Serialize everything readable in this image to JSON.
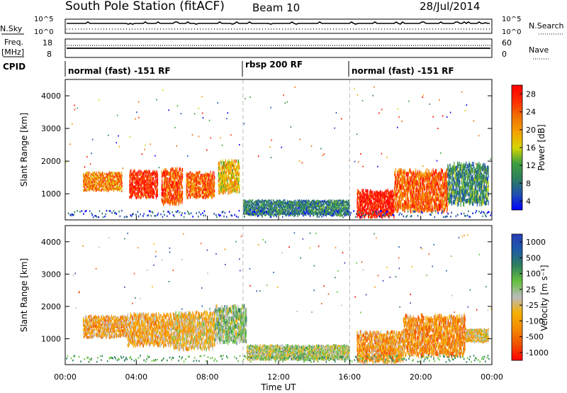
{
  "header": {
    "title": "South Pole Station (fitACF)",
    "beam": "Beam 10",
    "date": "28/Jul/2014"
  },
  "indicators": {
    "nsky_label": "N.Sky",
    "nsearch_label": "N.Search",
    "freq_label_1": "Freq.",
    "freq_label_2": "[MHz]",
    "nave_label": "Nave",
    "cpid_label": "CPID",
    "nsky_ticks": [
      "10^5",
      "10^0"
    ],
    "nsearch_ticks": [
      "10^5",
      "10^0"
    ],
    "freq_ticks": [
      "18",
      "8"
    ],
    "nave_ticks": [
      "60",
      "0"
    ]
  },
  "cpid_segments": [
    {
      "label": "normal (fast) -151 RF",
      "start_h": 0,
      "end_h": 10
    },
    {
      "label": "rbsp 200 RF",
      "start_h": 10,
      "end_h": 16
    },
    {
      "label": "normal (fast) -151 RF",
      "start_h": 16,
      "end_h": 24
    }
  ],
  "colors": {
    "power_scale": [
      "#0000ff",
      "#1f4fb0",
      "#2e7f5e",
      "#3f9f3f",
      "#d6d600",
      "#f5a000",
      "#f07000",
      "#ff2a00",
      "#ff0000"
    ],
    "velocity_scale": [
      "#2a3fb8",
      "#1d5aa6",
      "#2e7f5e",
      "#66c040",
      "#bbbbbb",
      "#f5b000",
      "#f58a00",
      "#f05000",
      "#ff0000"
    ]
  },
  "chart_data": [
    {
      "type": "heatmap",
      "name": "power",
      "ylabel": "Slant Range [km]",
      "colorbar_label": "Power [dB]",
      "colorbar_ticks": [
        "28",
        "24",
        "20",
        "16",
        "12",
        "8",
        "4"
      ],
      "yticks": [
        "4000",
        "3000",
        "2000",
        "1000"
      ],
      "ylim": [
        200,
        4500
      ],
      "xlim": [
        0,
        24
      ],
      "zlim": [
        0,
        32
      ],
      "regions": [
        {
          "t0": 1.0,
          "t1": 3.2,
          "r0": 1100,
          "r1": 1650,
          "z": 22
        },
        {
          "t0": 3.6,
          "t1": 5.2,
          "r0": 900,
          "r1": 1700,
          "z": 27
        },
        {
          "t0": 5.4,
          "t1": 6.6,
          "r0": 700,
          "r1": 1750,
          "z": 25
        },
        {
          "t0": 6.8,
          "t1": 8.4,
          "r0": 900,
          "r1": 1650,
          "z": 24
        },
        {
          "t0": 8.6,
          "t1": 9.8,
          "r0": 1050,
          "r1": 2000,
          "z": 18
        },
        {
          "t0": 10.0,
          "t1": 16.0,
          "r0": 350,
          "r1": 800,
          "z": 9
        },
        {
          "t0": 16.4,
          "t1": 18.5,
          "r0": 300,
          "r1": 1100,
          "z": 29
        },
        {
          "t0": 18.5,
          "t1": 21.5,
          "r0": 500,
          "r1": 1700,
          "z": 24
        },
        {
          "t0": 21.5,
          "t1": 23.8,
          "r0": 700,
          "r1": 1900,
          "z": 10
        }
      ]
    },
    {
      "type": "heatmap",
      "name": "velocity",
      "xlabel": "Time UT",
      "ylabel": "Slant Range [km]",
      "colorbar_label": "Velocity [m s⁻¹]",
      "colorbar_ticks": [
        "1000",
        "500",
        "100",
        "25",
        "-25",
        "-100",
        "-500",
        "-1000"
      ],
      "yticks": [
        "4000",
        "3000",
        "2000",
        "1000"
      ],
      "xticks": [
        "00:00",
        "04:00",
        "08:00",
        "12:00",
        "16:00",
        "20:00",
        "00:00"
      ],
      "ylim": [
        200,
        4500
      ],
      "xlim": [
        0,
        24
      ],
      "zlim": [
        -1000,
        1000
      ],
      "regions": [
        {
          "t0": 1.0,
          "t1": 3.5,
          "r0": 1050,
          "r1": 1700,
          "z": -300
        },
        {
          "t0": 3.5,
          "t1": 6.0,
          "r0": 800,
          "r1": 1750,
          "z": -250
        },
        {
          "t0": 6.0,
          "t1": 8.4,
          "r0": 700,
          "r1": 1800,
          "z": -200
        },
        {
          "t0": 8.4,
          "t1": 10.2,
          "r0": 900,
          "r1": 2000,
          "z": 150
        },
        {
          "t0": 10.2,
          "t1": 16.0,
          "r0": 350,
          "r1": 800,
          "z": 60
        },
        {
          "t0": 16.4,
          "t1": 19.0,
          "r0": 300,
          "r1": 1200,
          "z": -350
        },
        {
          "t0": 19.0,
          "t1": 22.5,
          "r0": 500,
          "r1": 1700,
          "z": -400
        },
        {
          "t0": 22.5,
          "t1": 23.8,
          "r0": 900,
          "r1": 1300,
          "z": -150
        }
      ]
    }
  ]
}
